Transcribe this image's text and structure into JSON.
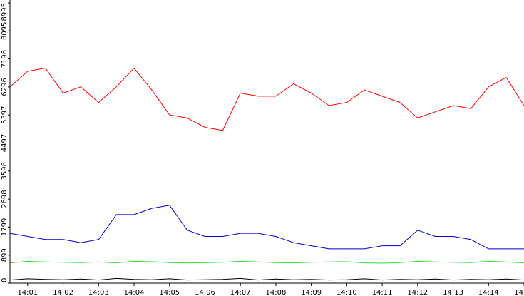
{
  "chart_data": {
    "type": "line",
    "title": "",
    "xlabel": "",
    "ylabel": "",
    "xlim": [
      "14:00:30",
      "14:15:00"
    ],
    "ylim": [
      0,
      8995
    ],
    "y_ticks": [
      0,
      899,
      1799,
      2698,
      3598,
      4497,
      5397,
      6296,
      7196,
      8095,
      8995
    ],
    "x_ticks": [
      "14:01",
      "14:02",
      "14:03",
      "14:04",
      "14:05",
      "14:06",
      "14:07",
      "14:08",
      "14:09",
      "14:10",
      "14:11",
      "14:12",
      "14:13",
      "14:14",
      "14"
    ],
    "grid": false,
    "legend": "none",
    "series": [
      {
        "color": "#ff0000",
        "x": [
          "14:00:30",
          "14:01:00",
          "14:01:30",
          "14:02:00",
          "14:02:30",
          "14:03:00",
          "14:03:30",
          "14:04:00",
          "14:04:30",
          "14:05:00",
          "14:05:30",
          "14:06:00",
          "14:06:30",
          "14:07:00",
          "14:07:30",
          "14:08:00",
          "14:08:30",
          "14:09:00",
          "14:09:30",
          "14:10:00",
          "14:10:30",
          "14:11:00",
          "14:11:30",
          "14:12:00",
          "14:12:30",
          "14:13:00",
          "14:13:30",
          "14:14:00",
          "14:14:30",
          "14:15:00"
        ],
        "y": [
          6300,
          6800,
          6900,
          6100,
          6300,
          5800,
          6300,
          6900,
          6200,
          5400,
          5300,
          5000,
          4900,
          6100,
          6000,
          6000,
          6400,
          6100,
          5700,
          5800,
          6200,
          6000,
          5800,
          5300,
          5500,
          5700,
          5600,
          6300,
          6600,
          5700
        ]
      },
      {
        "color": "#0000cc",
        "x": [
          "14:00:30",
          "14:01:00",
          "14:01:30",
          "14:02:00",
          "14:02:30",
          "14:03:00",
          "14:03:30",
          "14:04:00",
          "14:04:30",
          "14:05:00",
          "14:05:30",
          "14:06:00",
          "14:06:30",
          "14:07:00",
          "14:07:30",
          "14:08:00",
          "14:08:30",
          "14:09:00",
          "14:09:30",
          "14:10:00",
          "14:10:30",
          "14:11:00",
          "14:11:30",
          "14:12:00",
          "14:12:30",
          "14:13:00",
          "14:13:30",
          "14:14:00",
          "14:14:30",
          "14:15:00"
        ],
        "y": [
          1600,
          1500,
          1400,
          1400,
          1300,
          1400,
          2200,
          2200,
          2400,
          2500,
          1700,
          1500,
          1500,
          1600,
          1600,
          1500,
          1300,
          1200,
          1100,
          1100,
          1100,
          1200,
          1200,
          1700,
          1500,
          1500,
          1400,
          1100,
          1100,
          1100
        ]
      },
      {
        "color": "#33dd33",
        "x": [
          "14:00:30",
          "14:01:00",
          "14:01:30",
          "14:02:00",
          "14:02:30",
          "14:03:00",
          "14:03:30",
          "14:04:00",
          "14:04:30",
          "14:05:00",
          "14:05:30",
          "14:06:00",
          "14:06:30",
          "14:07:00",
          "14:07:30",
          "14:08:00",
          "14:08:30",
          "14:09:00",
          "14:09:30",
          "14:10:00",
          "14:10:30",
          "14:11:00",
          "14:11:30",
          "14:12:00",
          "14:12:30",
          "14:13:00",
          "14:13:30",
          "14:14:00",
          "14:14:30",
          "14:15:00"
        ],
        "y": [
          650,
          700,
          680,
          670,
          660,
          680,
          650,
          700,
          690,
          660,
          650,
          660,
          670,
          700,
          680,
          660,
          650,
          670,
          680,
          690,
          650,
          640,
          660,
          700,
          680,
          670,
          660,
          700,
          680,
          650
        ]
      },
      {
        "color": "#000000",
        "x": [
          "14:00:30",
          "14:01:00",
          "14:01:30",
          "14:02:00",
          "14:02:30",
          "14:03:00",
          "14:03:30",
          "14:04:00",
          "14:04:30",
          "14:05:00",
          "14:05:30",
          "14:06:00",
          "14:06:30",
          "14:07:00",
          "14:07:30",
          "14:08:00",
          "14:08:30",
          "14:09:00",
          "14:09:30",
          "14:10:00",
          "14:10:30",
          "14:11:00",
          "14:11:30",
          "14:12:00",
          "14:12:30",
          "14:13:00",
          "14:13:30",
          "14:14:00",
          "14:14:30",
          "14:15:00"
        ],
        "y": [
          100,
          140,
          120,
          110,
          130,
          100,
          150,
          120,
          110,
          140,
          100,
          110,
          120,
          150,
          100,
          130,
          110,
          120,
          100,
          110,
          140,
          100,
          120,
          110,
          130,
          100,
          120,
          110,
          130,
          100
        ]
      }
    ]
  }
}
